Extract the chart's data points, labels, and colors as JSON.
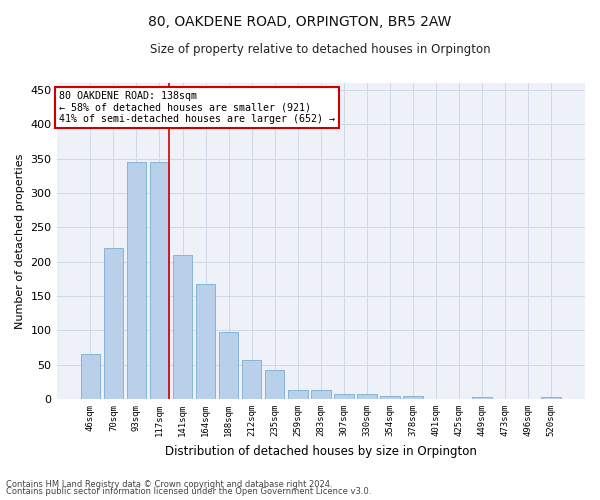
{
  "title": "80, OAKDENE ROAD, ORPINGTON, BR5 2AW",
  "subtitle": "Size of property relative to detached houses in Orpington",
  "xlabel": "Distribution of detached houses by size in Orpington",
  "ylabel": "Number of detached properties",
  "categories": [
    "46sqm",
    "70sqm",
    "93sqm",
    "117sqm",
    "141sqm",
    "164sqm",
    "188sqm",
    "212sqm",
    "235sqm",
    "259sqm",
    "283sqm",
    "307sqm",
    "330sqm",
    "354sqm",
    "378sqm",
    "401sqm",
    "425sqm",
    "449sqm",
    "473sqm",
    "496sqm",
    "520sqm"
  ],
  "values": [
    65,
    220,
    345,
    345,
    210,
    168,
    97,
    57,
    42,
    13,
    13,
    7,
    7,
    5,
    5,
    0,
    0,
    3,
    0,
    0,
    3
  ],
  "bar_color": "#b8d0ea",
  "bar_edge_color": "#7aadd4",
  "highlight_line_color": "#cc0000",
  "annotation_text": "80 OAKDENE ROAD: 138sqm\n← 58% of detached houses are smaller (921)\n41% of semi-detached houses are larger (652) →",
  "annotation_box_color": "#ffffff",
  "annotation_box_edge_color": "#cc0000",
  "ylim": [
    0,
    460
  ],
  "yticks": [
    0,
    50,
    100,
    150,
    200,
    250,
    300,
    350,
    400,
    450
  ],
  "grid_color": "#d0d8e8",
  "background_color": "#eef2f8",
  "footer1": "Contains HM Land Registry data © Crown copyright and database right 2024.",
  "footer2": "Contains public sector information licensed under the Open Government Licence v3.0."
}
